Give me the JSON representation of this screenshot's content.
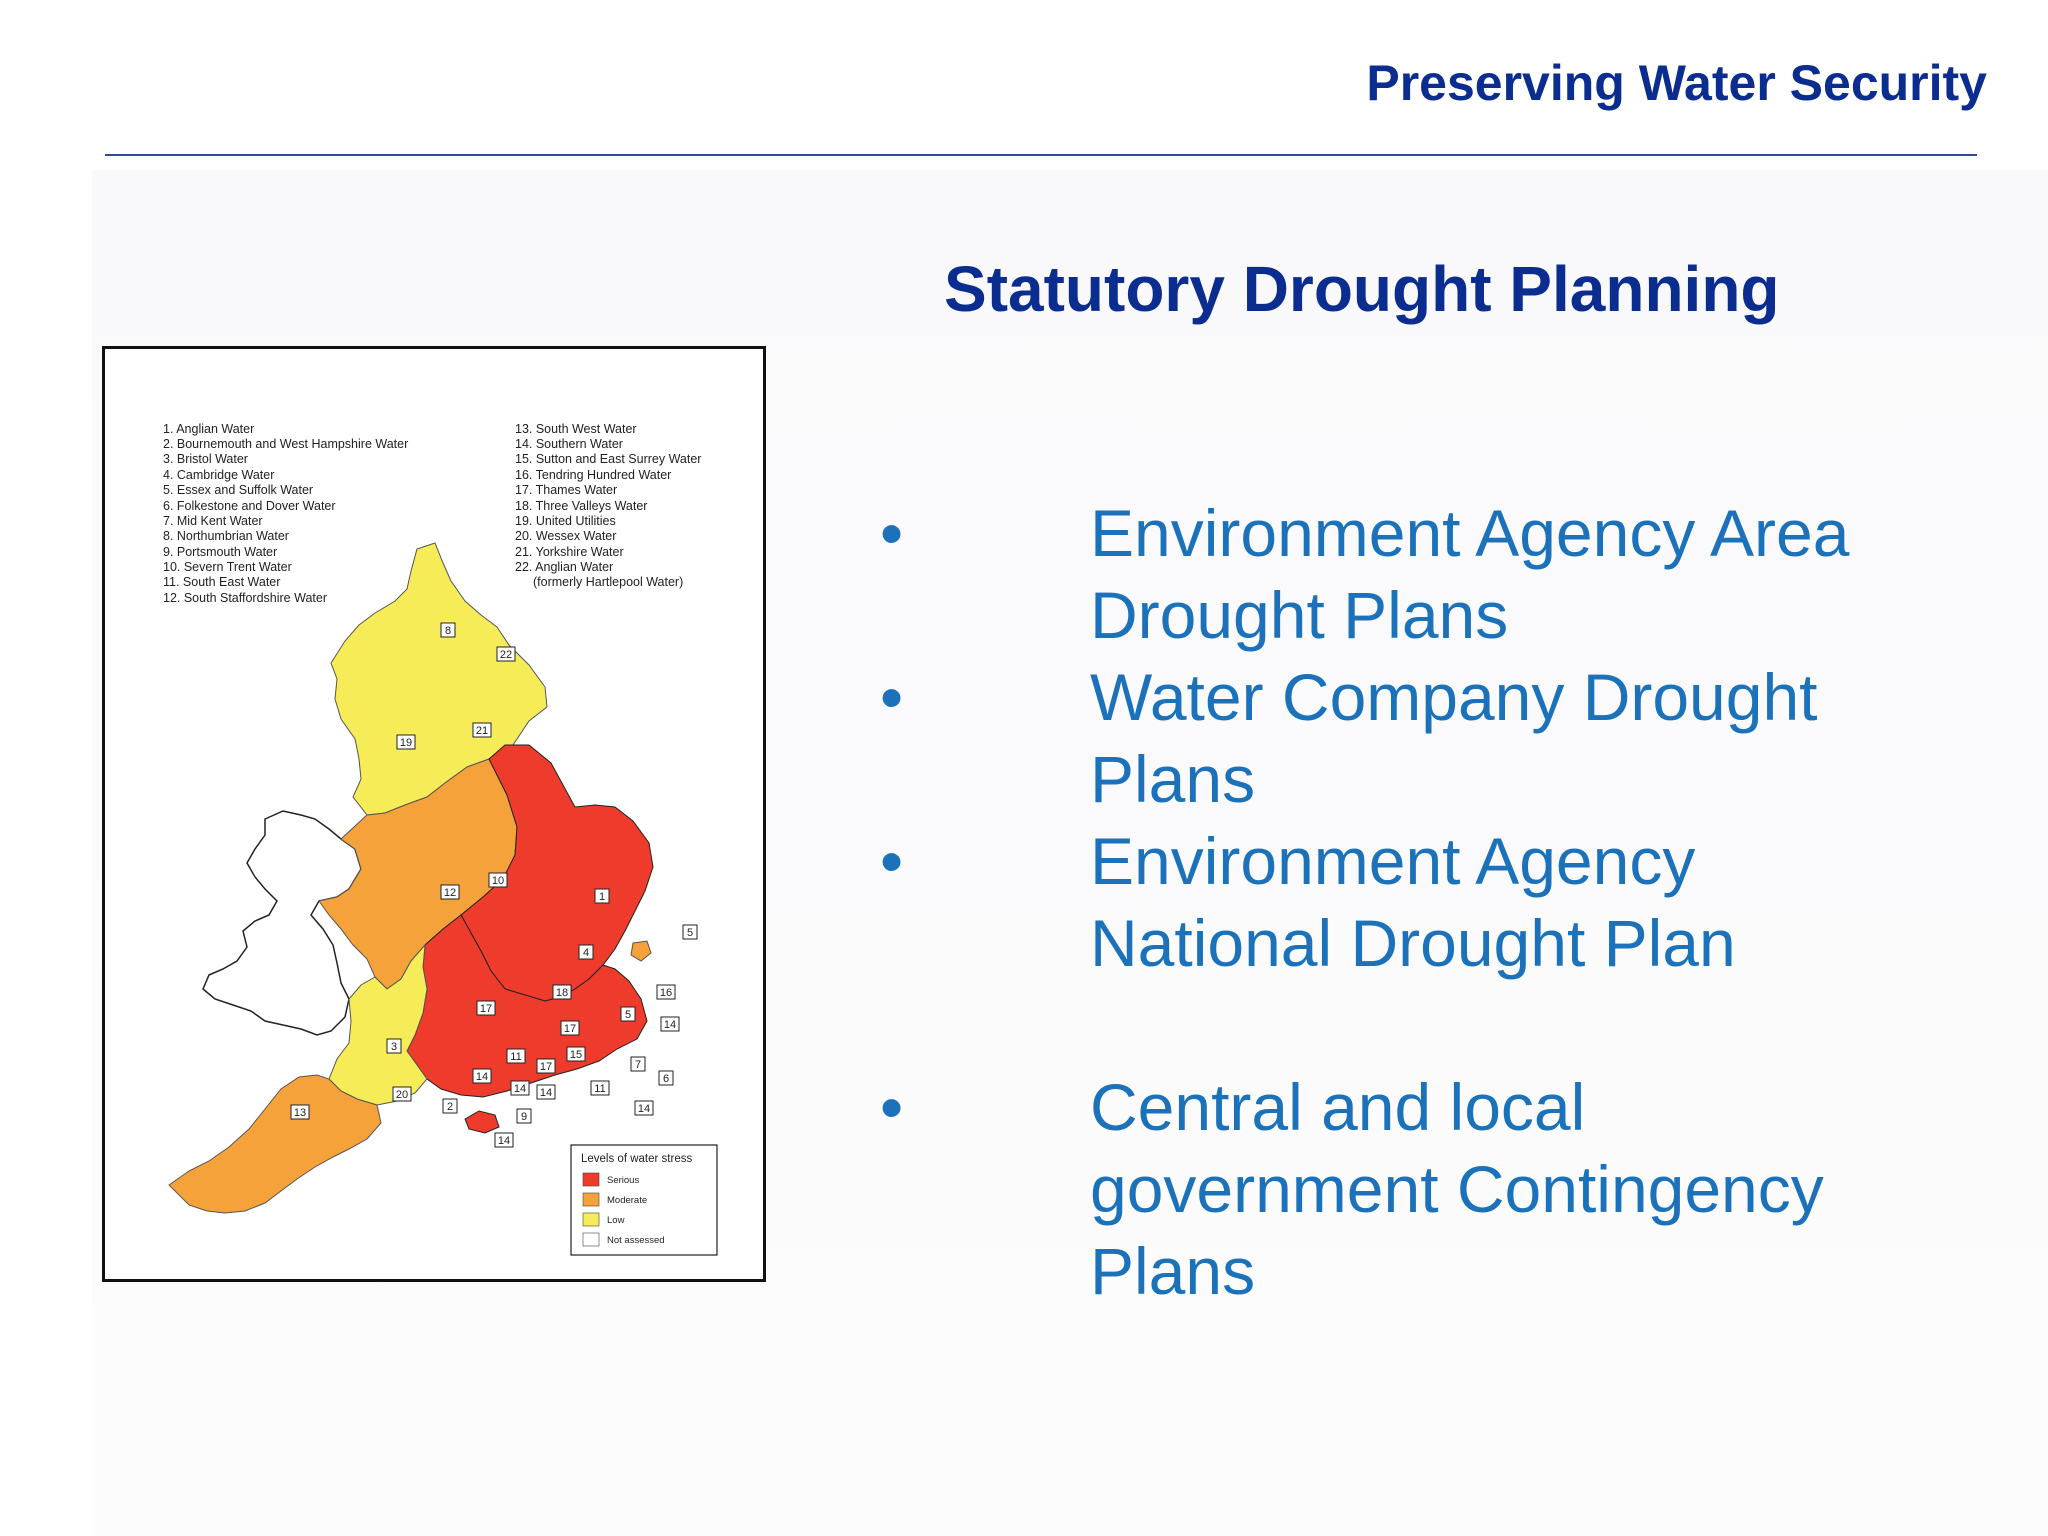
{
  "header": {
    "title": "Preserving Water Security"
  },
  "slide": {
    "heading": "Statutory Drought Planning",
    "bullet_glyph": "•",
    "bullets": [
      {
        "lines": [
          "Environment Agency Area",
          "Drought Plans"
        ]
      },
      {
        "lines": [
          "Water Company Drought",
          "Plans"
        ]
      },
      {
        "lines": [
          "Environment Agency",
          "National Drought Plan"
        ]
      },
      {
        "lines": [
          "Central and local",
          "government Contingency",
          "Plans"
        ]
      }
    ]
  },
  "map": {
    "companies_left": [
      "1.  Anglian Water",
      "2.  Bournemouth and West Hampshire Water",
      "3.  Bristol Water",
      "4.  Cambridge Water",
      "5.  Essex and Suffolk Water",
      "6.  Folkestone and Dover Water",
      "7.  Mid Kent Water",
      "8.  Northumbrian Water",
      "9.  Portsmouth Water",
      "10.  Severn Trent Water",
      "11.  South East Water",
      "12.  South Staffordshire Water"
    ],
    "companies_right": [
      "13.  South West Water",
      "14.  Southern Water",
      "15.  Sutton and East Surrey Water",
      "16.  Tendring Hundred Water",
      "17.  Thames Water",
      "18.  Three Valleys Water",
      "19.  United Utilities",
      "20.  Wessex Water",
      "21.  Yorkshire Water",
      "22.  Anglian Water",
      "(formerly Hartlepool Water)"
    ],
    "region_labels": [
      "8",
      "22",
      "21",
      "19",
      "10",
      "12",
      "1",
      "5",
      "4",
      "16",
      "18",
      "17",
      "17",
      "5",
      "14",
      "11",
      "15",
      "17",
      "3",
      "14",
      "7",
      "14",
      "6",
      "20",
      "2",
      "14",
      "11",
      "14",
      "9",
      "13",
      "14"
    ],
    "legend": {
      "title": "Levels of water stress",
      "items": [
        {
          "label": "Serious",
          "color": "#ee3b2b"
        },
        {
          "label": "Moderate",
          "color": "#f5a23a"
        },
        {
          "label": "Low",
          "color": "#f6ec57"
        },
        {
          "label": "Not assessed",
          "color": "#ffffff"
        }
      ]
    }
  },
  "colors": {
    "header_text": "#0b2d8f",
    "bullet_text": "#1b72bb",
    "serious": "#ee3b2b",
    "moderate": "#f5a23a",
    "low": "#f6ec57"
  }
}
